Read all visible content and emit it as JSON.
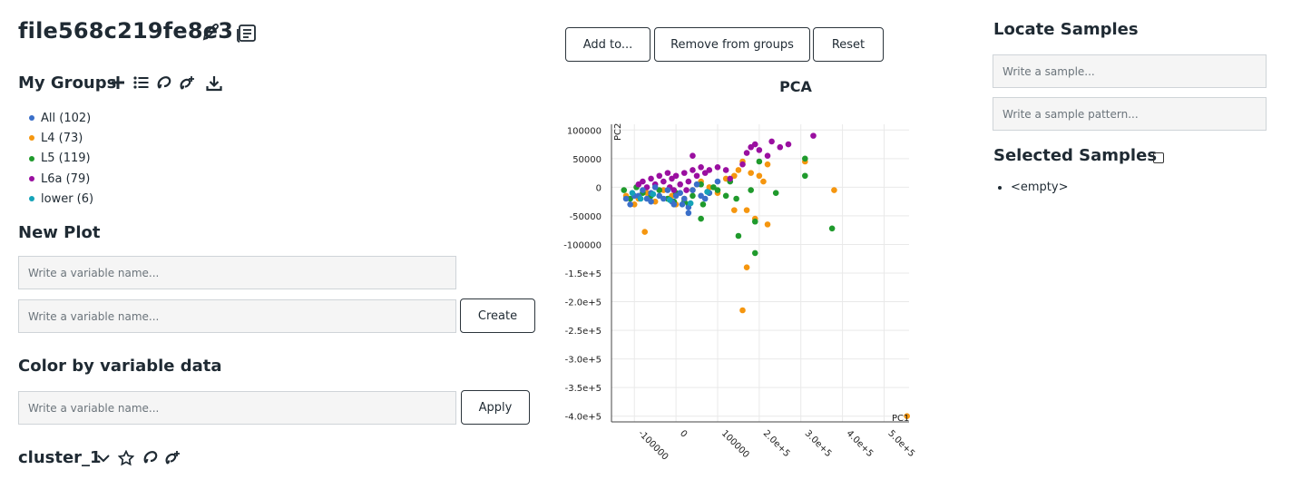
{
  "file": {
    "title": "file568c219fe8e3",
    "edit_icon": "pencil-icon",
    "notes_icon": "document-icon"
  },
  "groups": {
    "heading": "My Groups",
    "icons": [
      "plus-icon",
      "list-icon",
      "lasso-icon",
      "lasso-add-icon",
      "download-icon"
    ],
    "items": [
      {
        "label": "All (102)",
        "color": "#3a6fc9"
      },
      {
        "label": "L4 (73)",
        "color": "#f5960f"
      },
      {
        "label": "L5 (119)",
        "color": "#1f9a2c"
      },
      {
        "label": "L6a (79)",
        "color": "#9a0fa0"
      },
      {
        "label": "lower (6)",
        "color": "#15a3b8"
      }
    ]
  },
  "new_plot": {
    "heading": "New Plot",
    "placeholder1": "Write a variable name...",
    "placeholder2": "Write a variable name...",
    "create_label": "Create"
  },
  "color_by": {
    "heading": "Color by variable data",
    "placeholder": "Write a variable name...",
    "apply_label": "Apply"
  },
  "cluster": {
    "label": "cluster_1",
    "icons": [
      "chevron-down-icon",
      "star-icon",
      "lasso-icon",
      "lasso-add-icon"
    ]
  },
  "toolbar": {
    "add_label": "Add to...",
    "remove_label": "Remove from groups",
    "reset_label": "Reset"
  },
  "chart_data": {
    "type": "scatter",
    "title": "PCA",
    "xlabel": "PC1",
    "ylabel": "PC2",
    "xlim": [
      -155000,
      560000
    ],
    "ylim": [
      -410000,
      110000
    ],
    "x_ticks": [
      "-100000",
      "0",
      "100000",
      "2.0e+5",
      "3.0e+5",
      "4.0e+5",
      "5.0e+5"
    ],
    "x_tick_values": [
      -100000,
      0,
      100000,
      200000,
      300000,
      400000,
      500000
    ],
    "y_ticks": [
      "100000",
      "50000",
      "0",
      "-50000",
      "-100000",
      "-1.5e+5",
      "-2.0e+5",
      "-2.5e+5",
      "-3.0e+5",
      "-3.5e+5",
      "-4.0e+5"
    ],
    "y_tick_values": [
      100000,
      50000,
      0,
      -50000,
      -100000,
      -150000,
      -200000,
      -250000,
      -300000,
      -350000,
      -400000
    ],
    "grid": true,
    "series": [
      {
        "name": "L4",
        "color": "#f5960f",
        "points": [
          [
            -120000,
            -15000
          ],
          [
            -100000,
            -30000
          ],
          [
            -90000,
            -20000
          ],
          [
            -70000,
            -10000
          ],
          [
            -50000,
            -25000
          ],
          [
            -30000,
            -5000
          ],
          [
            -10000,
            -15000
          ],
          [
            0,
            -30000
          ],
          [
            20000,
            -20000
          ],
          [
            40000,
            -5000
          ],
          [
            60000,
            10000
          ],
          [
            80000,
            0
          ],
          [
            100000,
            -10000
          ],
          [
            120000,
            15000
          ],
          [
            140000,
            20000
          ],
          [
            150000,
            30000
          ],
          [
            160000,
            45000
          ],
          [
            180000,
            25000
          ],
          [
            200000,
            20000
          ],
          [
            210000,
            10000
          ],
          [
            220000,
            40000
          ],
          [
            140000,
            -40000
          ],
          [
            170000,
            -40000
          ],
          [
            190000,
            -55000
          ],
          [
            220000,
            -65000
          ],
          [
            -75000,
            -78000
          ],
          [
            170000,
            -140000
          ],
          [
            160000,
            -215000
          ],
          [
            310000,
            45000
          ],
          [
            380000,
            -5000
          ],
          [
            555000,
            -400000
          ]
        ]
      },
      {
        "name": "L5",
        "color": "#1f9a2c",
        "points": [
          [
            -125000,
            -5000
          ],
          [
            -110000,
            -20000
          ],
          [
            -95000,
            0
          ],
          [
            -80000,
            -10000
          ],
          [
            -60000,
            -15000
          ],
          [
            -40000,
            -5000
          ],
          [
            -20000,
            -20000
          ],
          [
            0,
            -10000
          ],
          [
            20000,
            -25000
          ],
          [
            40000,
            -15000
          ],
          [
            60000,
            5000
          ],
          [
            80000,
            -10000
          ],
          [
            100000,
            -5000
          ],
          [
            120000,
            -15000
          ],
          [
            130000,
            10000
          ],
          [
            60000,
            -55000
          ],
          [
            180000,
            -5000
          ],
          [
            200000,
            45000
          ],
          [
            240000,
            -10000
          ],
          [
            310000,
            50000
          ],
          [
            310000,
            20000
          ],
          [
            145000,
            -20000
          ],
          [
            190000,
            -60000
          ],
          [
            150000,
            -85000
          ],
          [
            190000,
            -115000
          ],
          [
            375000,
            -72000
          ],
          [
            30000,
            -30000
          ],
          [
            -5000,
            -25000
          ],
          [
            65000,
            -30000
          ],
          [
            90000,
            0
          ]
        ]
      },
      {
        "name": "L6a",
        "color": "#9a0fa0",
        "points": [
          [
            -90000,
            5000
          ],
          [
            -80000,
            10000
          ],
          [
            -70000,
            0
          ],
          [
            -60000,
            15000
          ],
          [
            -50000,
            5000
          ],
          [
            -40000,
            20000
          ],
          [
            -30000,
            10000
          ],
          [
            -20000,
            25000
          ],
          [
            -10000,
            15000
          ],
          [
            0,
            20000
          ],
          [
            10000,
            5000
          ],
          [
            20000,
            25000
          ],
          [
            30000,
            10000
          ],
          [
            40000,
            30000
          ],
          [
            50000,
            20000
          ],
          [
            60000,
            35000
          ],
          [
            70000,
            25000
          ],
          [
            80000,
            30000
          ],
          [
            100000,
            35000
          ],
          [
            120000,
            30000
          ],
          [
            130000,
            15000
          ],
          [
            160000,
            40000
          ],
          [
            170000,
            60000
          ],
          [
            180000,
            70000
          ],
          [
            190000,
            75000
          ],
          [
            200000,
            65000
          ],
          [
            220000,
            55000
          ],
          [
            230000,
            80000
          ],
          [
            250000,
            70000
          ],
          [
            270000,
            75000
          ],
          [
            330000,
            90000
          ],
          [
            40000,
            55000
          ],
          [
            -15000,
            0
          ],
          [
            -5000,
            -5000
          ],
          [
            25000,
            -5000
          ]
        ]
      },
      {
        "name": "All",
        "color": "#3a6fc9",
        "points": [
          [
            -120000,
            -20000
          ],
          [
            -110000,
            -30000
          ],
          [
            -90000,
            -15000
          ],
          [
            -80000,
            -5000
          ],
          [
            -70000,
            -20000
          ],
          [
            -60000,
            -10000
          ],
          [
            -50000,
            0
          ],
          [
            -40000,
            -15000
          ],
          [
            -30000,
            -20000
          ],
          [
            -20000,
            -5000
          ],
          [
            -10000,
            -25000
          ],
          [
            0,
            -15000
          ],
          [
            10000,
            -10000
          ],
          [
            20000,
            -20000
          ],
          [
            30000,
            -35000
          ],
          [
            40000,
            -5000
          ],
          [
            50000,
            5000
          ],
          [
            70000,
            -20000
          ],
          [
            80000,
            -10000
          ],
          [
            100000,
            10000
          ],
          [
            30000,
            -45000
          ],
          [
            -100000,
            -15000
          ],
          [
            -60000,
            -25000
          ],
          [
            -5000,
            -30000
          ],
          [
            15000,
            -30000
          ],
          [
            60000,
            -15000
          ]
        ]
      },
      {
        "name": "lower",
        "color": "#15a3b8",
        "points": [
          [
            -105000,
            -10000
          ],
          [
            -85000,
            -20000
          ],
          [
            -55000,
            -12000
          ],
          [
            -15000,
            -22000
          ],
          [
            35000,
            -28000
          ],
          [
            75000,
            -8000
          ]
        ]
      }
    ]
  },
  "locate": {
    "heading": "Locate Samples",
    "sample_placeholder": "Write a sample...",
    "pattern_placeholder": "Write a sample pattern..."
  },
  "selected": {
    "heading": "Selected Samples",
    "empty_label": "<empty>"
  }
}
